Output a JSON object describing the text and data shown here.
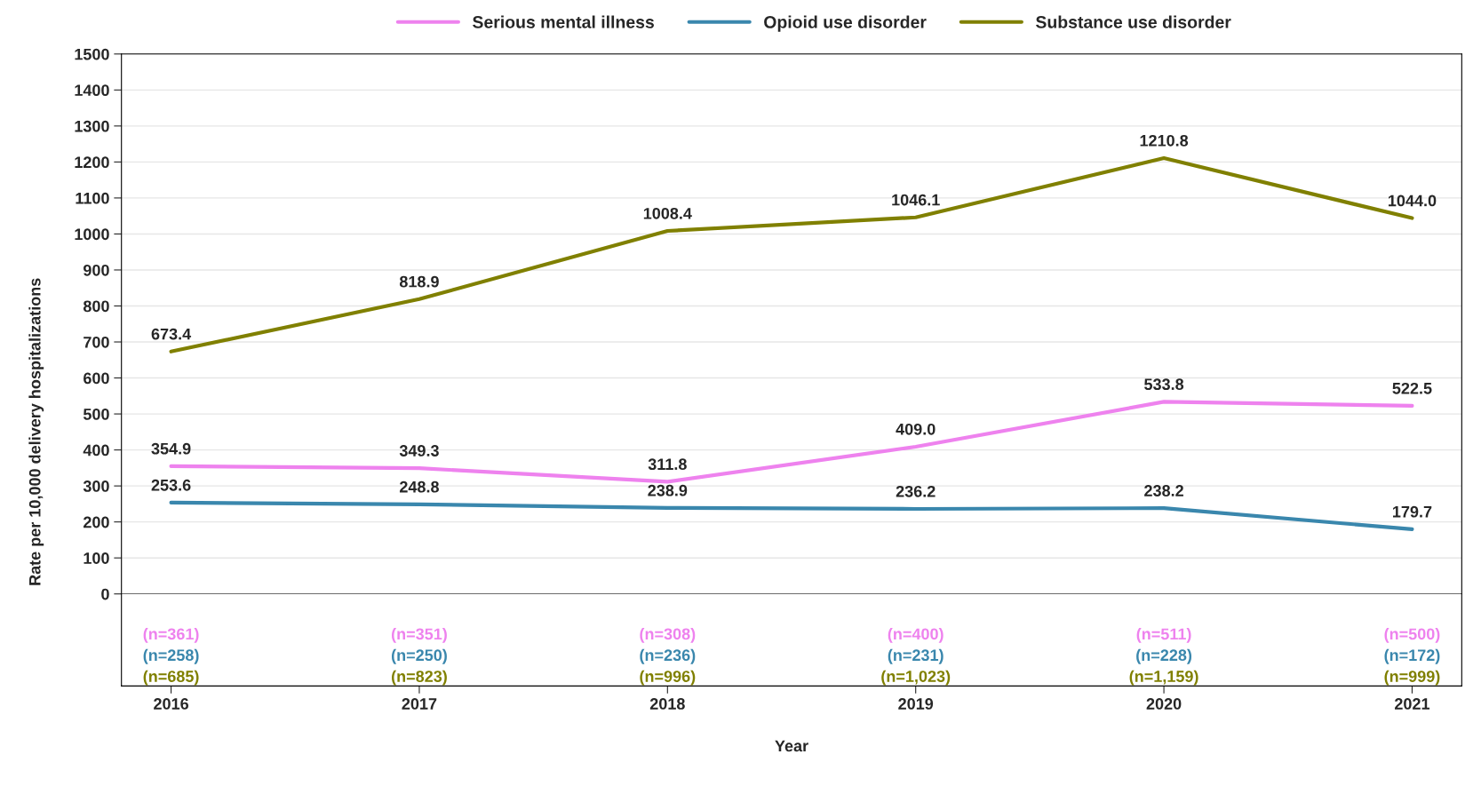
{
  "chart_data": {
    "type": "line",
    "xlabel": "Year",
    "ylabel": "Rate per 10,000 delivery hospitalizations",
    "categories": [
      "2016",
      "2017",
      "2018",
      "2019",
      "2020",
      "2021"
    ],
    "series": [
      {
        "name": "Serious mental illness",
        "color": "#ee82ee",
        "values": [
          354.9,
          349.3,
          311.8,
          409.0,
          533.8,
          522.5
        ],
        "value_labels": [
          "354.9",
          "349.3",
          "311.8",
          "409.0",
          "533.8",
          "522.5"
        ]
      },
      {
        "name": "Opioid use disorder",
        "color": "#3a87ad",
        "values": [
          253.6,
          248.8,
          238.9,
          236.2,
          238.2,
          179.7
        ],
        "value_labels": [
          "253.6",
          "248.8",
          "238.9",
          "236.2",
          "238.2",
          "179.7"
        ]
      },
      {
        "name": "Substance use disorder",
        "color": "#808000",
        "values": [
          673.4,
          818.9,
          1008.4,
          1046.1,
          1210.8,
          1044.0
        ],
        "value_labels": [
          "673.4",
          "818.9",
          "1008.4",
          "1046.1",
          "1210.8",
          "1044.0"
        ]
      }
    ],
    "ylim": [
      0,
      1500
    ],
    "yticks": [
      0,
      100,
      200,
      300,
      400,
      500,
      600,
      700,
      800,
      900,
      1000,
      1100,
      1200,
      1300,
      1400,
      1500
    ],
    "grid": "y",
    "legend": "top",
    "line_style": "solid",
    "marker": "none",
    "annotations": [
      "(n=361)",
      "(n=258)",
      "(n=685)",
      "(n=351)",
      "(n=250)",
      "(n=823)",
      "(n=308)",
      "(n=236)",
      "(n=996)",
      "(n=400)",
      "(n=231)",
      "(n=1,023)",
      "(n=511)",
      "(n=228)",
      "(n=1,159)",
      "(n=500)",
      "(n=172)",
      "(n=999)"
    ]
  }
}
